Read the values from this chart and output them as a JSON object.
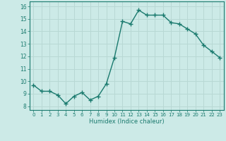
{
  "x": [
    0,
    1,
    2,
    3,
    4,
    5,
    6,
    7,
    8,
    9,
    10,
    11,
    12,
    13,
    14,
    15,
    16,
    17,
    18,
    19,
    20,
    21,
    22,
    23
  ],
  "y": [
    9.7,
    9.2,
    9.2,
    8.9,
    8.2,
    8.8,
    9.1,
    8.5,
    8.8,
    9.8,
    11.9,
    14.8,
    14.6,
    15.7,
    15.3,
    15.3,
    15.3,
    14.7,
    14.6,
    14.2,
    13.8,
    12.9,
    12.4,
    11.9
  ],
  "line_color": "#1a7a6e",
  "bg_color": "#cceae7",
  "grid_color": "#b8d8d4",
  "ylabel_values": [
    8,
    9,
    10,
    11,
    12,
    13,
    14,
    15,
    16
  ],
  "ylim": [
    7.7,
    16.4
  ],
  "xlim": [
    -0.5,
    23.5
  ],
  "xlabel": "Humidex (Indice chaleur)",
  "marker": "+",
  "marker_size": 4,
  "line_width": 1.0
}
